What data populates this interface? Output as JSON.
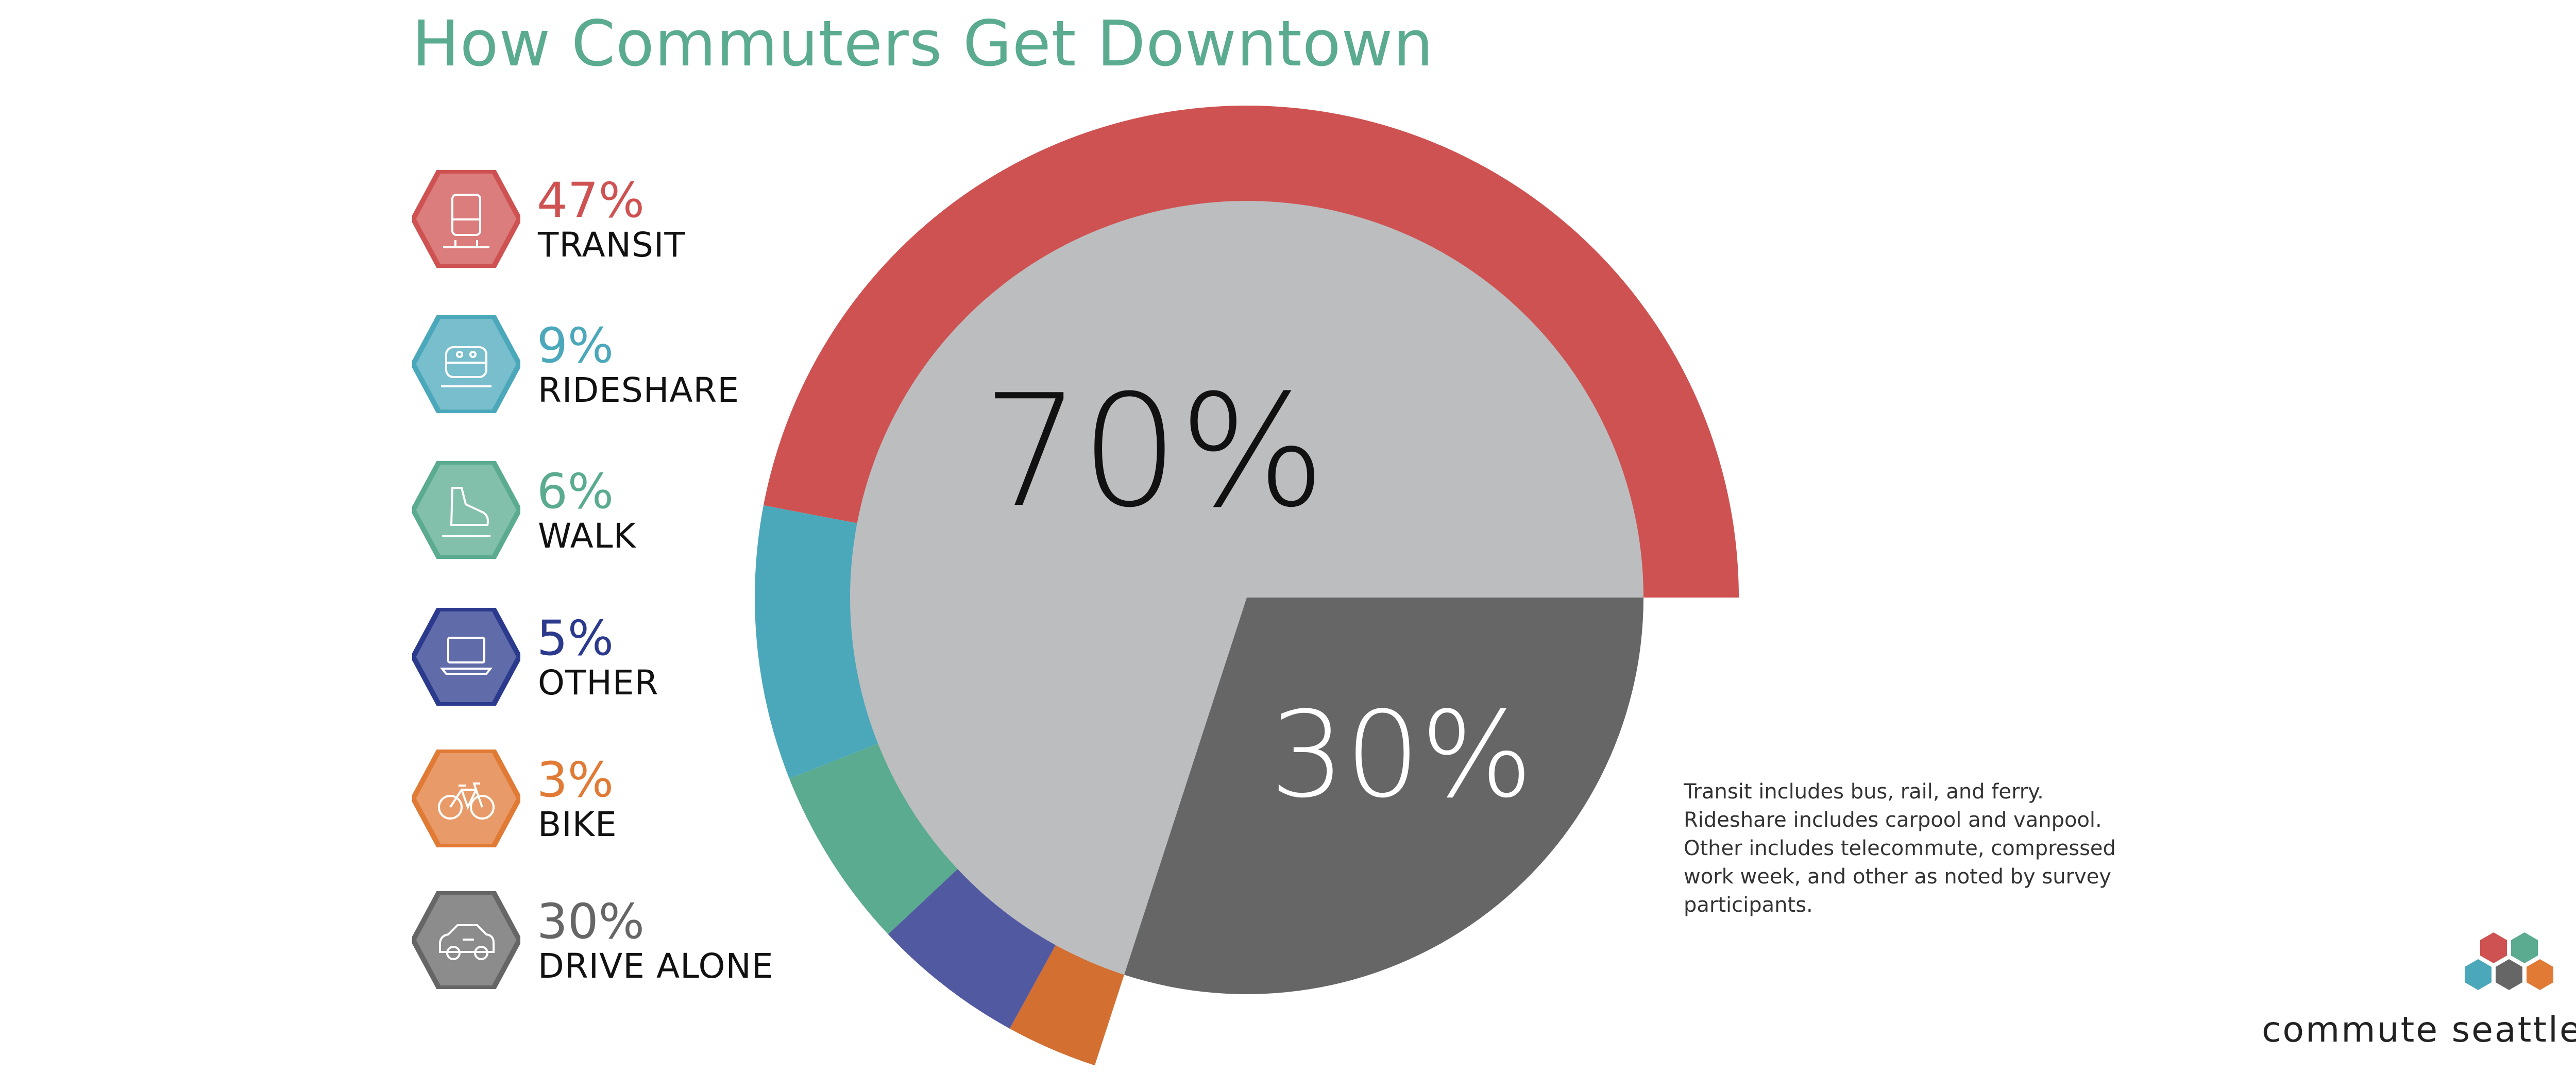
{
  "title": "How Commuters Get Downtown",
  "legend": [
    {
      "pct": "47%",
      "label": "TRANSIT",
      "color": "#cf5252",
      "icon": "bus-icon"
    },
    {
      "pct": "9%",
      "label": "RIDESHARE",
      "color": "#4ba8bb",
      "icon": "van-icon"
    },
    {
      "pct": "6%",
      "label": "WALK",
      "color": "#5aab8f",
      "icon": "shoe-icon"
    },
    {
      "pct": "5%",
      "label": "OTHER",
      "color": "#2b3a8c",
      "icon": "laptop-icon"
    },
    {
      "pct": "3%",
      "label": "BIKE",
      "color": "#e07a35",
      "icon": "bicycle-icon"
    },
    {
      "pct": "30%",
      "label": "DRIVE ALONE",
      "color": "#666666",
      "icon": "car-icon"
    }
  ],
  "chart_data": {
    "type": "pie",
    "title": "How Commuters Get Downtown",
    "inner": {
      "slices": [
        {
          "value": 70,
          "label": "70%",
          "color": "#bcbdbf"
        },
        {
          "value": 30,
          "label": "30%",
          "color": "#666666"
        }
      ]
    },
    "outer_ring": {
      "slices": [
        {
          "name": "TRANSIT",
          "value": 47,
          "color": "#cf5252"
        },
        {
          "name": "RIDESHARE",
          "value": 9,
          "color": "#4ba8bb"
        },
        {
          "name": "WALK",
          "value": 6,
          "color": "#5aab8f"
        },
        {
          "name": "OTHER",
          "value": 5,
          "color": "#5159a1"
        },
        {
          "name": "BIKE",
          "value": 3,
          "color": "#d46f32"
        }
      ]
    }
  },
  "note": [
    "Transit includes bus, rail, and ferry.",
    "Rideshare includes carpool and vanpool.",
    "Other includes telecommute, compressed",
    "work week, and other as noted by survey",
    "participants."
  ],
  "brand": {
    "name": "commute seattle",
    "logo_colors": [
      "#cf5252",
      "#5aab8f",
      "#4ba8bb",
      "#666666",
      "#e07a35"
    ]
  }
}
